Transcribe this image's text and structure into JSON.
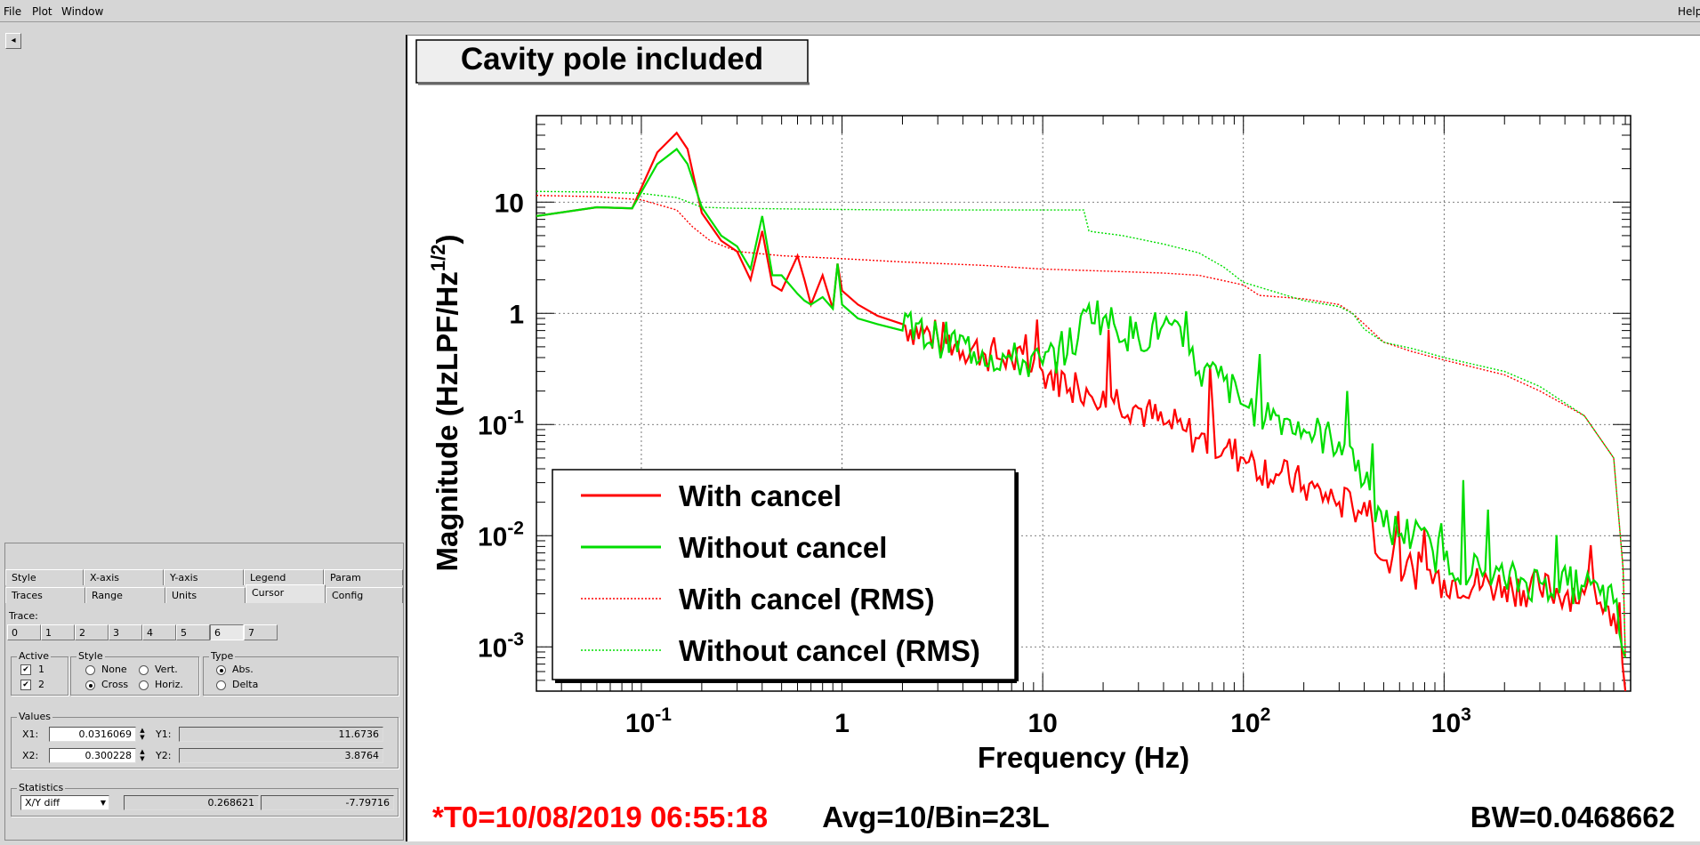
{
  "menu": {
    "file": "File",
    "plot": "Plot",
    "window": "Window",
    "help": "Help"
  },
  "collapse_glyph": "◂",
  "tabs_row1": [
    "Style",
    "X-axis",
    "Y-axis",
    "Legend",
    "Param"
  ],
  "tabs_row2": [
    "Traces",
    "Range",
    "Units",
    "Cursor",
    "Config"
  ],
  "active_tab": "Cursor",
  "trace_label": "Trace:",
  "traces": [
    "0",
    "1",
    "2",
    "3",
    "4",
    "5",
    "6",
    "7"
  ],
  "selected_trace": "6",
  "active_group": {
    "title": "Active",
    "items": [
      {
        "label": "1",
        "checked": true
      },
      {
        "label": "2",
        "checked": true
      }
    ]
  },
  "style_group": {
    "title": "Style",
    "options": [
      "None",
      "Vert.",
      "Cross",
      "Horiz."
    ],
    "selected": "Cross"
  },
  "type_group": {
    "title": "Type",
    "options": [
      "Abs.",
      "Delta"
    ],
    "selected": "Abs."
  },
  "values_group": {
    "title": "Values",
    "x1_label": "X1:",
    "x1": "0.0316069",
    "y1_label": "Y1:",
    "y1": "11.6736",
    "x2_label": "X2:",
    "x2": "0.300228",
    "y2_label": "Y2:",
    "y2": "3.8764"
  },
  "stats_group": {
    "title": "Statistics",
    "select": "X/Y diff",
    "v1": "0.268621",
    "v2": "-7.79716"
  },
  "plot": {
    "title": "Cavity pole included",
    "footer_left": "*T0=10/08/2019 06:55:18",
    "footer_mid": "Avg=10/Bin=23L",
    "footer_right": "BW=0.0468662",
    "colors": {
      "red": "#ff0000",
      "green": "#00dd00",
      "footer_red": "#ff0000"
    }
  },
  "chart_data": {
    "type": "line",
    "xlabel": "Frequency (Hz)",
    "ylabel": "Magnitude (HzLPF/Hz^(1/2))",
    "xscale": "log",
    "yscale": "log",
    "xlim": [
      0.03,
      8500
    ],
    "ylim": [
      0.0004,
      60
    ],
    "grid": true,
    "legend_position": "bottom-left",
    "x_ticks": [
      "10^-1",
      "1",
      "10",
      "10^2",
      "10^3"
    ],
    "y_ticks": [
      "10^-3",
      "10^-2",
      "10^-1",
      "1",
      "10"
    ],
    "series": [
      {
        "name": "With cancel",
        "color": "#ff0000",
        "style": "solid",
        "x": [
          0.03,
          0.06,
          0.09,
          0.12,
          0.15,
          0.17,
          0.2,
          0.25,
          0.3,
          0.35,
          0.4,
          0.45,
          0.5,
          0.6,
          0.65,
          0.7,
          0.8,
          0.9,
          0.95,
          1.0,
          1.2,
          1.5,
          2,
          3,
          5,
          7,
          10,
          15,
          20,
          30,
          40,
          50,
          60,
          80,
          100,
          150,
          200,
          300,
          350,
          400,
          500,
          700,
          1000,
          2000,
          3000,
          5000,
          6000,
          7000,
          8000
        ],
        "y": [
          7.5,
          9,
          8.8,
          28,
          42,
          30,
          8,
          4.5,
          3.6,
          2,
          5.5,
          1.8,
          1.6,
          3.3,
          2,
          1.2,
          2.2,
          1.1,
          2.8,
          1.6,
          1.2,
          0.95,
          0.8,
          0.6,
          0.45,
          0.38,
          0.3,
          0.22,
          0.2,
          0.14,
          0.1,
          0.09,
          0.075,
          0.06,
          0.05,
          0.035,
          0.028,
          0.02,
          0.018,
          0.02,
          0.006,
          0.005,
          0.004,
          0.0035,
          0.0033,
          0.003,
          0.0025,
          0.002,
          0.0004
        ]
      },
      {
        "name": "Without cancel",
        "color": "#00dd00",
        "style": "solid",
        "x": [
          0.03,
          0.06,
          0.09,
          0.12,
          0.15,
          0.17,
          0.2,
          0.25,
          0.3,
          0.35,
          0.4,
          0.45,
          0.5,
          0.6,
          0.65,
          0.7,
          0.8,
          0.9,
          0.95,
          1.0,
          1.2,
          1.5,
          2,
          3,
          5,
          7,
          10,
          15,
          17,
          20,
          30,
          40,
          50,
          60,
          80,
          100,
          150,
          200,
          300,
          350,
          400,
          500,
          700,
          1000,
          2000,
          3000,
          5000,
          6000,
          7000,
          8000
        ],
        "y": [
          7.5,
          9,
          8.8,
          22,
          30,
          22,
          9,
          5,
          4,
          2.5,
          7.5,
          2.2,
          2.2,
          1.5,
          1.3,
          1.2,
          1.4,
          1.1,
          2.8,
          1.2,
          0.9,
          0.8,
          0.7,
          0.6,
          0.45,
          0.38,
          0.35,
          0.6,
          1.2,
          0.9,
          0.6,
          0.8,
          0.5,
          0.3,
          0.25,
          0.15,
          0.12,
          0.09,
          0.07,
          0.06,
          0.03,
          0.012,
          0.01,
          0.006,
          0.004,
          0.0038,
          0.0035,
          0.003,
          0.0025,
          0.0008
        ]
      },
      {
        "name": "With cancel (RMS)",
        "color": "#ff0000",
        "style": "dotted",
        "x": [
          0.03,
          0.06,
          0.1,
          0.15,
          0.18,
          0.22,
          0.3,
          0.5,
          1,
          2,
          5,
          10,
          20,
          40,
          60,
          100,
          120,
          200,
          300,
          350,
          400,
          500,
          700,
          1000,
          2000,
          3000,
          5000,
          7000,
          7800,
          8000
        ],
        "y": [
          11.5,
          11.2,
          10.5,
          8.5,
          6,
          4.5,
          3.6,
          3.3,
          3.1,
          2.9,
          2.7,
          2.5,
          2.4,
          2.3,
          2.2,
          1.8,
          1.45,
          1.35,
          1.2,
          1,
          0.8,
          0.55,
          0.45,
          0.38,
          0.28,
          0.2,
          0.12,
          0.05,
          0.005,
          0.0008
        ]
      },
      {
        "name": "Without cancel (RMS)",
        "color": "#00dd00",
        "style": "dotted",
        "x": [
          0.03,
          0.06,
          0.1,
          0.15,
          0.2,
          0.3,
          0.5,
          1,
          2,
          5,
          10,
          16,
          17,
          18,
          25,
          40,
          60,
          80,
          100,
          200,
          300,
          350,
          400,
          500,
          700,
          1000,
          2000,
          3000,
          5000,
          7000,
          7800,
          8000
        ],
        "y": [
          12.5,
          12.3,
          12,
          11,
          9,
          8.8,
          8.7,
          8.6,
          8.5,
          8.5,
          8.5,
          8.5,
          5.5,
          5.4,
          5,
          4.2,
          3.5,
          2.6,
          1.9,
          1.3,
          1.15,
          1,
          0.72,
          0.55,
          0.48,
          0.4,
          0.3,
          0.22,
          0.12,
          0.05,
          0.005,
          0.0008
        ]
      }
    ]
  }
}
